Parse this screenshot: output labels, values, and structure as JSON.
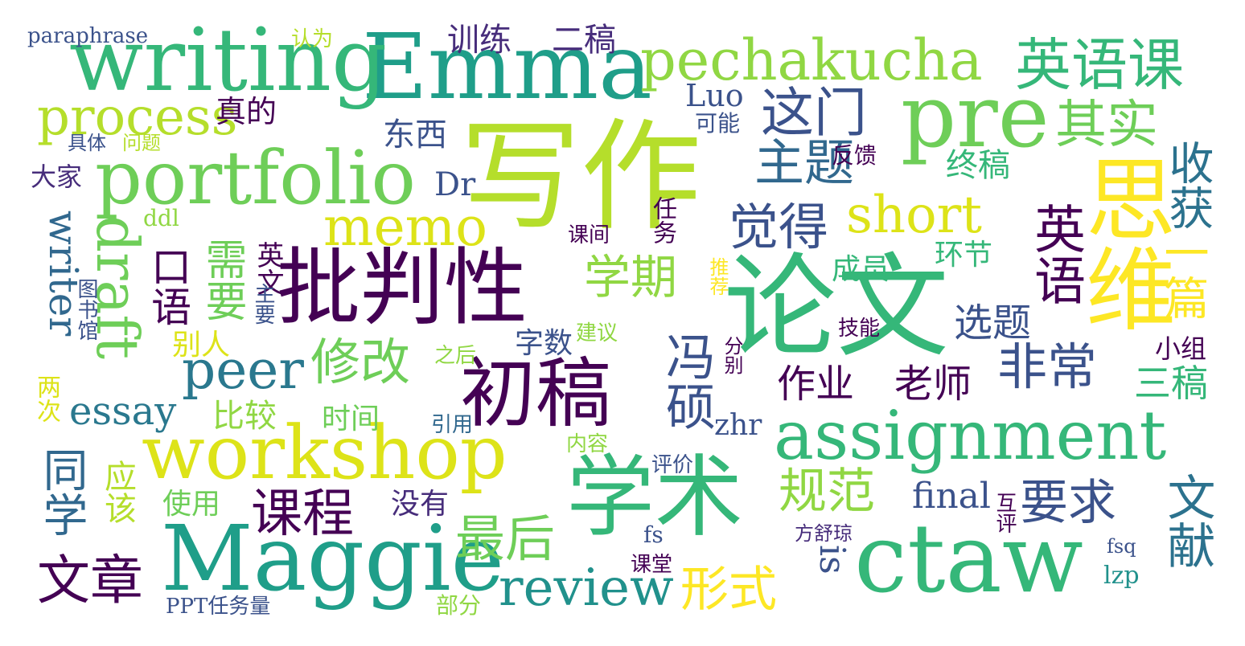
{
  "palette": {
    "deep_purple": "#440154",
    "indigo": "#3b528b",
    "teal": "#21918c",
    "green": "#35b779",
    "lime": "#90d743",
    "yellow": "#dde318"
  },
  "words": [
    {
      "text": "写作",
      "color": "#b5de2b"
    },
    {
      "text": "论文",
      "color": "#35b779"
    },
    {
      "text": "批判性",
      "color": "#440154"
    },
    {
      "text": "Emma",
      "color": "#1f9e89"
    },
    {
      "text": "writing",
      "color": "#35b779"
    },
    {
      "text": "ctaw",
      "color": "#35b779"
    },
    {
      "text": "pre",
      "color": "#6ece58"
    },
    {
      "text": "portfolio",
      "color": "#6ece58"
    },
    {
      "text": "Maggie",
      "color": "#1f9e89"
    },
    {
      "text": "workshop",
      "color": "#dde318"
    },
    {
      "text": "assignment",
      "color": "#35b779"
    },
    {
      "text": "学术",
      "color": "#35b779"
    },
    {
      "text": "初稿",
      "color": "#440154"
    },
    {
      "text": "思维",
      "color": "#fde725"
    },
    {
      "text": "pechakucha",
      "color": "#90d743"
    },
    {
      "text": "英语课",
      "color": "#35b779"
    },
    {
      "text": "process",
      "color": "#b5de2b"
    },
    {
      "text": "draft",
      "color": "#6ece58"
    },
    {
      "text": "memo",
      "color": "#dde318"
    },
    {
      "text": "short",
      "color": "#dde318"
    },
    {
      "text": "这门",
      "color": "#3b528b"
    },
    {
      "text": "其实",
      "color": "#6ece58"
    },
    {
      "text": "主题",
      "color": "#31688e"
    },
    {
      "text": "觉得",
      "color": "#3b528b"
    },
    {
      "text": "英语",
      "color": "#440154"
    },
    {
      "text": "收获",
      "color": "#2c728e"
    },
    {
      "text": "一篇",
      "color": "#fde725"
    },
    {
      "text": "学期",
      "color": "#90d743"
    },
    {
      "text": "修改",
      "color": "#6ece58"
    },
    {
      "text": "peer",
      "color": "#2a788e"
    },
    {
      "text": "essay",
      "color": "#2a788e"
    },
    {
      "text": "review",
      "color": "#21918c"
    },
    {
      "text": "课程",
      "color": "#440154"
    },
    {
      "text": "冯硕",
      "color": "#3b528b"
    },
    {
      "text": "规范",
      "color": "#90d743"
    },
    {
      "text": "要求",
      "color": "#3b528b"
    },
    {
      "text": "文献",
      "color": "#2c728e"
    },
    {
      "text": "形式",
      "color": "#fde725"
    },
    {
      "text": "最后",
      "color": "#6ece58"
    },
    {
      "text": "同学",
      "color": "#31688e"
    },
    {
      "text": "文章",
      "color": "#440154"
    },
    {
      "text": "非常",
      "color": "#3b528b"
    },
    {
      "text": "作业",
      "color": "#440154"
    },
    {
      "text": "老师",
      "color": "#440154"
    },
    {
      "text": "三稿",
      "color": "#35b779"
    },
    {
      "text": "选题",
      "color": "#3b528b"
    },
    {
      "text": "需要",
      "color": "#6ece58"
    },
    {
      "text": "口语",
      "color": "#440154"
    },
    {
      "text": "writer",
      "color": "#31688e"
    },
    {
      "text": "final",
      "color": "#3b528b"
    },
    {
      "text": "is",
      "color": "#3b528b"
    },
    {
      "text": "训练",
      "color": "#472d7b"
    },
    {
      "text": "二稿",
      "color": "#472d7b"
    },
    {
      "text": "东西",
      "color": "#3b528b"
    },
    {
      "text": "真的",
      "color": "#440154"
    },
    {
      "text": "终稿",
      "color": "#35b779"
    },
    {
      "text": "成员",
      "color": "#35b779"
    },
    {
      "text": "环节",
      "color": "#35b779"
    },
    {
      "text": "Luo",
      "color": "#3b528b"
    },
    {
      "text": "Dr",
      "color": "#3b528b"
    },
    {
      "text": "比较",
      "color": "#90d743"
    },
    {
      "text": "时间",
      "color": "#6ece58"
    },
    {
      "text": "字数",
      "color": "#3b528b"
    },
    {
      "text": "别人",
      "color": "#dde318"
    },
    {
      "text": "应该",
      "color": "#b5de2b"
    },
    {
      "text": "使用",
      "color": "#6ece58"
    },
    {
      "text": "没有",
      "color": "#472d7b"
    },
    {
      "text": "zhr",
      "color": "#3b528b"
    },
    {
      "text": "小组",
      "color": "#440154"
    },
    {
      "text": "英文",
      "color": "#440154"
    },
    {
      "text": "paraphrase",
      "color": "#3b528b"
    },
    {
      "text": "认为",
      "color": "#b5de2b"
    },
    {
      "text": "可能",
      "color": "#3b528b"
    },
    {
      "text": "反馈",
      "color": "#440154"
    },
    {
      "text": "具体",
      "color": "#3b528b"
    },
    {
      "text": "问题",
      "color": "#b5de2b"
    },
    {
      "text": "大家",
      "color": "#472d7b"
    },
    {
      "text": "ddl",
      "color": "#90d743"
    },
    {
      "text": "课间",
      "color": "#440154"
    },
    {
      "text": "任务",
      "color": "#440154"
    },
    {
      "text": "推荐",
      "color": "#fde725"
    },
    {
      "text": "主要",
      "color": "#3b528b"
    },
    {
      "text": "图书馆",
      "color": "#3b528b"
    },
    {
      "text": "技能",
      "color": "#440154"
    },
    {
      "text": "建议",
      "color": "#90d743"
    },
    {
      "text": "分别",
      "color": "#440154"
    },
    {
      "text": "之后",
      "color": "#90d743"
    },
    {
      "text": "两次",
      "color": "#dde318"
    },
    {
      "text": "引用",
      "color": "#31688e"
    },
    {
      "text": "内容",
      "color": "#90d743"
    },
    {
      "text": "评价",
      "color": "#3b528b"
    },
    {
      "text": "互评",
      "color": "#440154"
    },
    {
      "text": "方舒琼",
      "color": "#472d7b"
    },
    {
      "text": "fs",
      "color": "#3b528b"
    },
    {
      "text": "fsq",
      "color": "#3b528b"
    },
    {
      "text": "lzp",
      "color": "#21918c"
    },
    {
      "text": "课堂",
      "color": "#440154"
    },
    {
      "text": "PPT任务量",
      "color": "#3b528b"
    },
    {
      "text": "部分",
      "color": "#90d743"
    }
  ]
}
